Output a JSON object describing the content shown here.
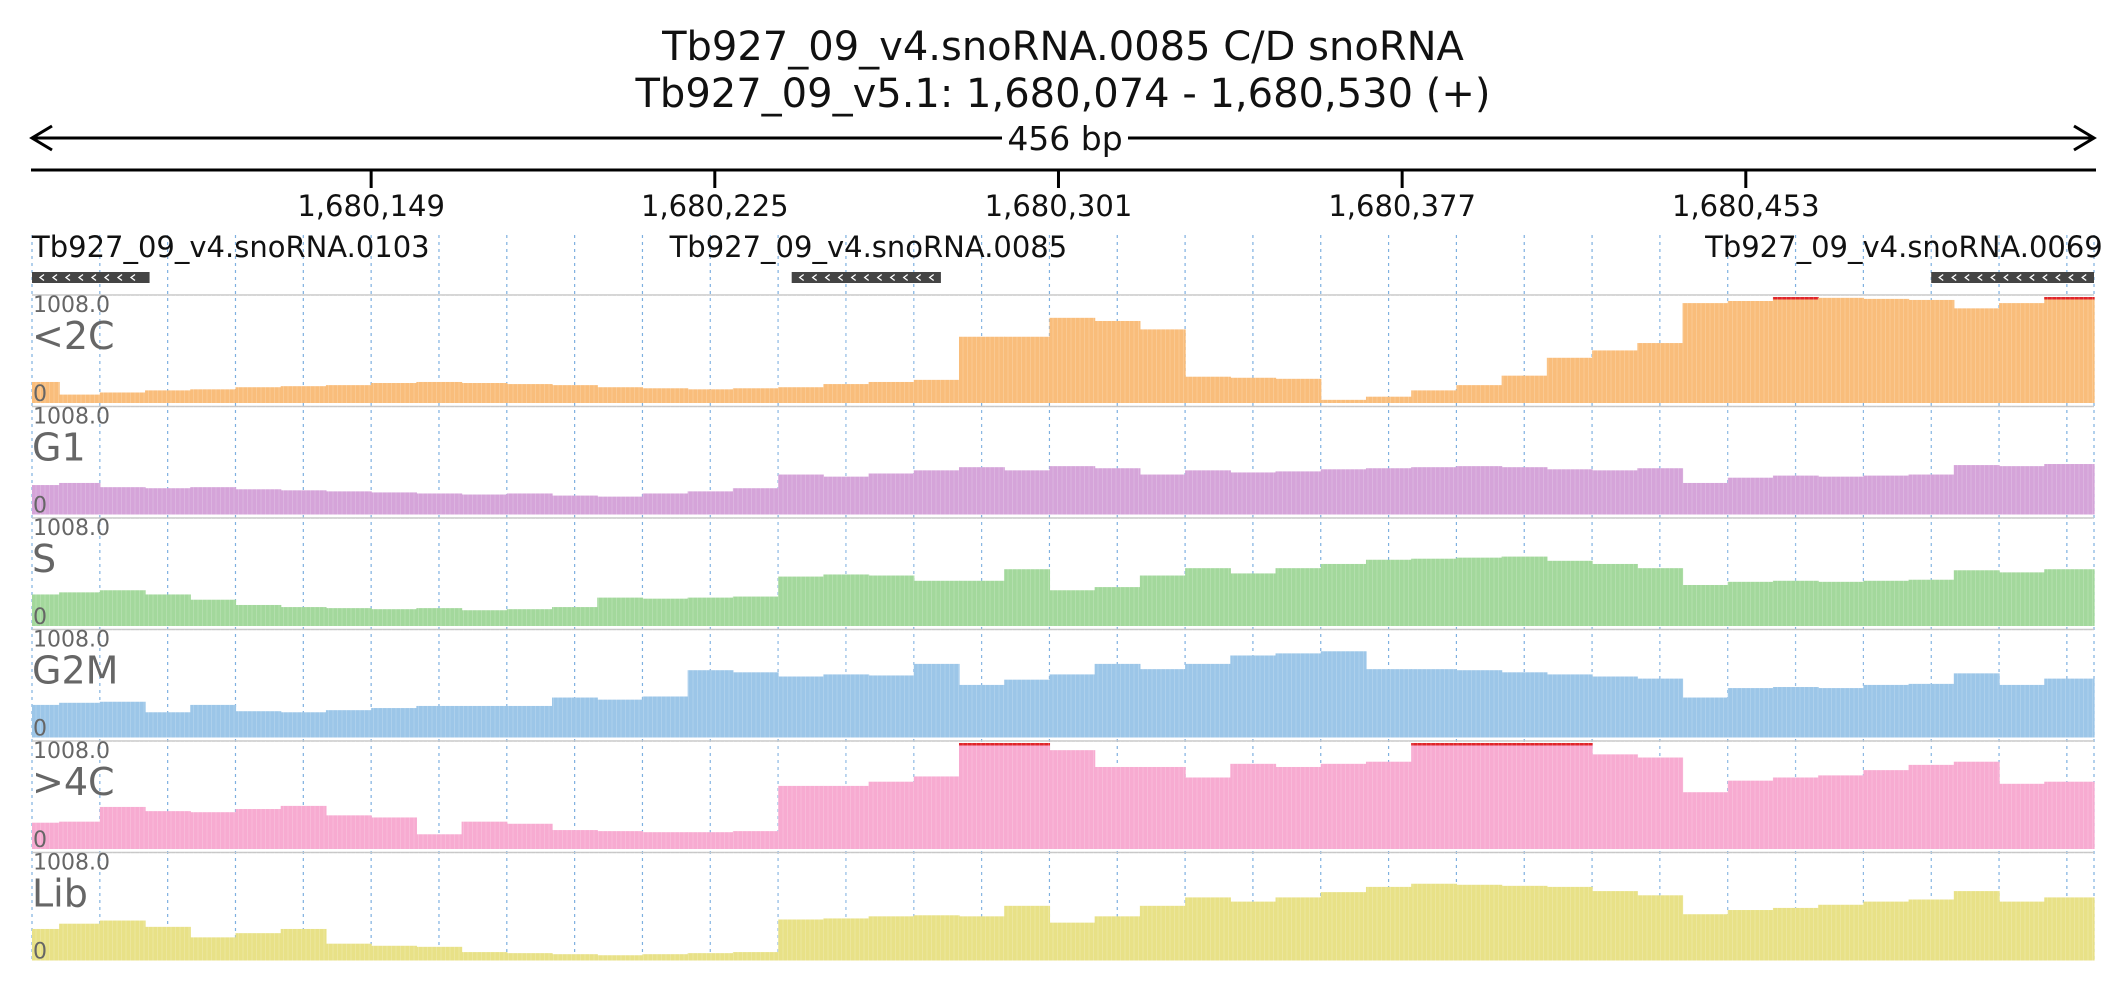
{
  "title": {
    "line1": "Tb927_09_v4.snoRNA.0085  C/D snoRNA",
    "line2": "Tb927_09_v5.1: 1,680,074 - 1,680,530 (+)"
  },
  "span": {
    "label": "456 bp"
  },
  "colors": {
    "axis": "#000000",
    "grid": "#7eb0e0",
    "feature": "#444444",
    "clip": "#e0262a",
    "border": "#c8c8c8"
  },
  "chart_data": {
    "type": "bar",
    "genome": {
      "start": 1680074,
      "end": 1680530,
      "strand": "+"
    },
    "ticks": [
      {
        "pos": 1680149,
        "label": "1,680,149"
      },
      {
        "pos": 1680225,
        "label": "1,680,225"
      },
      {
        "pos": 1680301,
        "label": "1,680,301"
      },
      {
        "pos": 1680377,
        "label": "1,680,377"
      },
      {
        "pos": 1680453,
        "label": "1,680,453"
      }
    ],
    "features": [
      {
        "name": "Tb927_09_v4.snoRNA.0103",
        "label_start": 1680074,
        "start": 1680074,
        "end": 1680100,
        "strand": "-"
      },
      {
        "name": "Tb927_09_v4.snoRNA.0085",
        "label_start": 1680215,
        "start": 1680242,
        "end": 1680275,
        "strand": "-"
      },
      {
        "name": "Tb927_09_v4.snoRNA.0069",
        "label_start": 1680444,
        "start": 1680494,
        "end": 1680530,
        "strand": "-"
      }
    ],
    "ylim": [
      0,
      1008
    ],
    "scale_max_label": "1008.0",
    "scale_min_label": "0",
    "bin_edges": [
      1680074,
      1680080,
      1680089,
      1680099,
      1680109,
      1680119,
      1680129,
      1680139,
      1680149,
      1680159,
      1680169,
      1680179,
      1680189,
      1680199,
      1680209,
      1680219,
      1680229,
      1680239,
      1680249,
      1680259,
      1680269,
      1680279,
      1680289,
      1680299,
      1680309,
      1680319,
      1680329,
      1680339,
      1680349,
      1680359,
      1680369,
      1680379,
      1680389,
      1680399,
      1680409,
      1680419,
      1680429,
      1680439,
      1680449,
      1680459,
      1680469,
      1680479,
      1680489,
      1680499,
      1680509,
      1680519,
      1680530
    ],
    "series": [
      {
        "name": "<2C",
        "color": "#f9bd7b",
        "clip_color": "#e0262a",
        "values": [
          200,
          80,
          100,
          120,
          130,
          150,
          160,
          170,
          190,
          200,
          190,
          180,
          170,
          150,
          140,
          130,
          140,
          150,
          180,
          200,
          220,
          630,
          630,
          810,
          780,
          700,
          250,
          240,
          230,
          30,
          60,
          120,
          170,
          260,
          430,
          500,
          570,
          950,
          970,
          1008,
          1000,
          990,
          980,
          900,
          950,
          1008
        ]
      },
      {
        "name": "G1",
        "color": "#d5a4d9",
        "values": [
          280,
          300,
          260,
          250,
          260,
          240,
          230,
          220,
          210,
          200,
          190,
          200,
          180,
          170,
          200,
          220,
          250,
          380,
          360,
          390,
          420,
          450,
          420,
          460,
          440,
          380,
          420,
          400,
          410,
          430,
          440,
          450,
          460,
          450,
          430,
          420,
          440,
          300,
          350,
          370,
          360,
          370,
          380,
          470,
          460,
          480
        ]
      },
      {
        "name": "S",
        "color": "#a3d89c",
        "values": [
          300,
          320,
          340,
          300,
          250,
          200,
          180,
          170,
          160,
          170,
          150,
          160,
          180,
          270,
          260,
          270,
          280,
          470,
          490,
          480,
          430,
          430,
          540,
          340,
          370,
          480,
          550,
          500,
          550,
          590,
          630,
          640,
          650,
          660,
          620,
          590,
          550,
          390,
          420,
          430,
          420,
          430,
          440,
          530,
          510,
          540
        ]
      },
      {
        "name": "G2M",
        "color": "#9cc6e8",
        "values": [
          310,
          330,
          340,
          240,
          310,
          250,
          240,
          260,
          280,
          300,
          300,
          300,
          380,
          360,
          390,
          640,
          620,
          580,
          600,
          590,
          700,
          500,
          550,
          600,
          700,
          650,
          700,
          780,
          800,
          820,
          650,
          650,
          640,
          620,
          600,
          580,
          560,
          380,
          470,
          480,
          470,
          500,
          510,
          610,
          500,
          560
        ]
      },
      {
        "name": ">4C",
        "color": "#f7abd1",
        "clip_color": "#e0262a",
        "values": [
          250,
          260,
          400,
          360,
          350,
          380,
          410,
          320,
          300,
          140,
          260,
          240,
          180,
          170,
          160,
          160,
          170,
          600,
          600,
          640,
          690,
          1008,
          1008,
          940,
          780,
          780,
          680,
          810,
          780,
          810,
          830,
          1008,
          1008,
          1008,
          1008,
          900,
          870,
          540,
          650,
          680,
          700,
          750,
          800,
          830,
          620,
          640
        ]
      },
      {
        "name": "Lib",
        "color": "#e8e187",
        "values": [
          300,
          350,
          380,
          320,
          220,
          260,
          300,
          160,
          140,
          130,
          80,
          70,
          60,
          50,
          60,
          70,
          80,
          390,
          400,
          420,
          430,
          420,
          520,
          360,
          420,
          520,
          600,
          560,
          600,
          650,
          700,
          730,
          720,
          710,
          700,
          660,
          620,
          440,
          480,
          500,
          530,
          560,
          580,
          660,
          560,
          600
        ]
      }
    ]
  }
}
